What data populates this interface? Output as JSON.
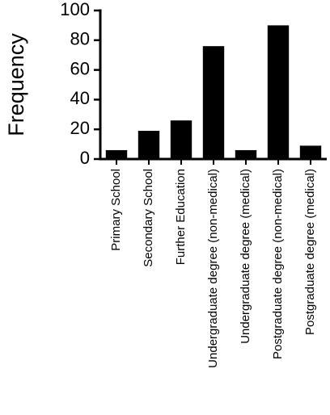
{
  "chart_data": {
    "type": "bar",
    "y_label": "Frequency",
    "categories": [
      "Primary School",
      "Secondary School",
      "Further Education",
      "Undergraduate degree (non-medical)",
      "Undergraduate degree (medical)",
      "Postgraduate degree (non-medical)",
      "Postgraduate degree (medical)"
    ],
    "values": [
      6,
      19,
      26,
      76,
      6,
      90,
      9
    ],
    "color": "#000000",
    "ylim": [
      0,
      100
    ],
    "yticks": [
      0,
      20,
      40,
      60,
      80,
      100
    ],
    "grid": false
  }
}
